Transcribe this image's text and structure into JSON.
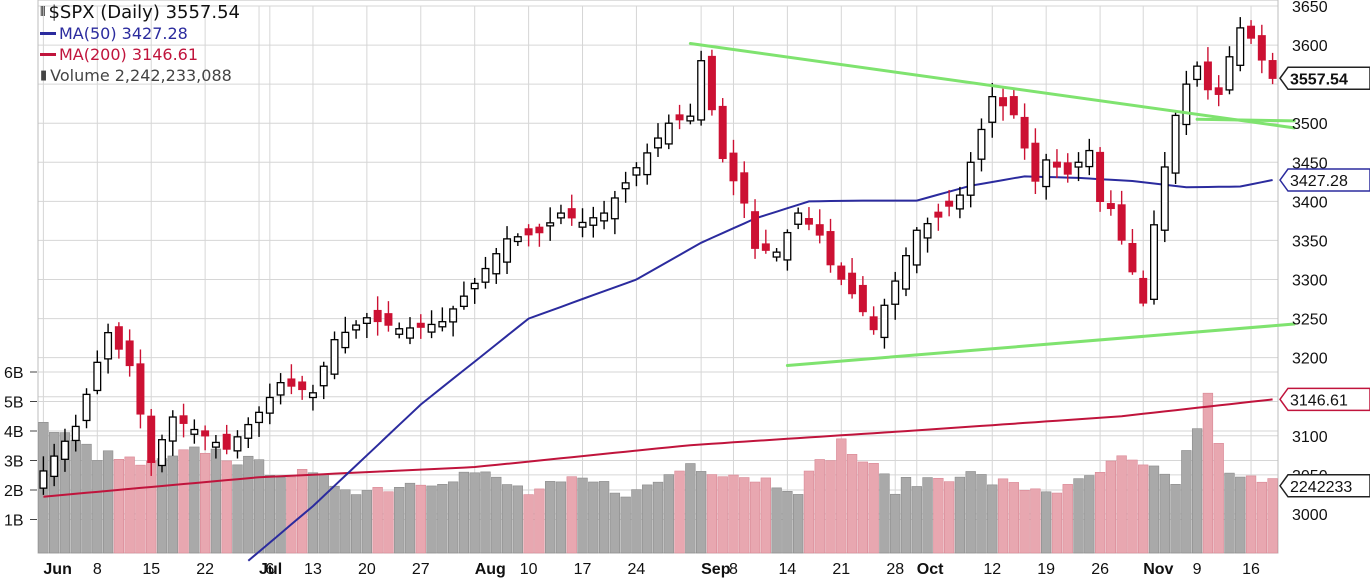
{
  "legend": {
    "title": "$SPX (Daily) 3557.54",
    "ma50": "MA(50) 3427.28",
    "ma200": "MA(200) 3146.61",
    "volume": "Volume 2,242,233,088"
  },
  "colors": {
    "up": "#000000",
    "down": "#cc1133",
    "ma50": "#2b2b9e",
    "ma200": "#c0143c",
    "trend": "#7fe36f",
    "vol_up": "#a9a9a9",
    "vol_down": "#e8a7b0",
    "grid": "#d6d6d6"
  },
  "chart_data": {
    "type": "candlestick",
    "price_axis": {
      "min": 2950,
      "max": 3650,
      "ticks": [
        3000,
        3050,
        3100,
        3150,
        3200,
        3250,
        3300,
        3350,
        3400,
        3450,
        3500,
        3550,
        3600,
        3650
      ],
      "tick_labels": [
        "3000",
        "3050",
        "3100",
        "",
        "3200",
        "3250",
        "3300",
        "3350",
        "3400",
        "3450",
        "3500",
        "",
        "3600",
        "3650"
      ]
    },
    "volume_axis": {
      "ticks": [
        1,
        2,
        3,
        4,
        5,
        6
      ],
      "labels": [
        "1B",
        "2B",
        "3B",
        "4B",
        "5B",
        "6B"
      ]
    },
    "x_labels": [
      {
        "i": 0,
        "label": "Jun",
        "bold": true
      },
      {
        "i": 5,
        "label": "8",
        "bold": false
      },
      {
        "i": 10,
        "label": "15",
        "bold": false
      },
      {
        "i": 15,
        "label": "22",
        "bold": false
      },
      {
        "i": 20,
        "label": "Jul",
        "bold": true
      },
      {
        "i": 21,
        "label": "6",
        "bold": false
      },
      {
        "i": 25,
        "label": "13",
        "bold": false
      },
      {
        "i": 30,
        "label": "20",
        "bold": false
      },
      {
        "i": 35,
        "label": "27",
        "bold": false
      },
      {
        "i": 40,
        "label": "Aug",
        "bold": true
      },
      {
        "i": 45,
        "label": "10",
        "bold": false
      },
      {
        "i": 50,
        "label": "17",
        "bold": false
      },
      {
        "i": 55,
        "label": "24",
        "bold": false
      },
      {
        "i": 61,
        "label": "Sep",
        "bold": true
      },
      {
        "i": 64,
        "label": "8",
        "bold": false
      },
      {
        "i": 69,
        "label": "14",
        "bold": false
      },
      {
        "i": 74,
        "label": "21",
        "bold": false
      },
      {
        "i": 79,
        "label": "28",
        "bold": false
      },
      {
        "i": 81,
        "label": "Oct",
        "bold": true
      },
      {
        "i": 88,
        "label": "12",
        "bold": false
      },
      {
        "i": 93,
        "label": "19",
        "bold": false
      },
      {
        "i": 98,
        "label": "26",
        "bold": false
      },
      {
        "i": 102,
        "label": "Nov",
        "bold": true
      },
      {
        "i": 107,
        "label": "9",
        "bold": false
      },
      {
        "i": 112,
        "label": "16",
        "bold": false
      }
    ],
    "price_tags": [
      {
        "value": 3557.54,
        "label": "3557.54",
        "kind": "last"
      },
      {
        "value": 3427.28,
        "label": "3427.28",
        "kind": "ma50"
      },
      {
        "value": 3146.61,
        "label": "3146.61",
        "kind": "ma200"
      },
      {
        "value": 3036,
        "label": "2242233",
        "kind": "volume"
      }
    ],
    "anchors": {
      "closes": [
        [
          0,
          3055
        ],
        [
          3,
          3112
        ],
        [
          5,
          3194
        ],
        [
          6,
          3232
        ],
        [
          8,
          3190
        ],
        [
          10,
          3066
        ],
        [
          12,
          3124
        ],
        [
          15,
          3100
        ],
        [
          17,
          3083
        ],
        [
          20,
          3130
        ],
        [
          22,
          3168
        ],
        [
          25,
          3155
        ],
        [
          27,
          3223
        ],
        [
          30,
          3251
        ],
        [
          33,
          3237
        ],
        [
          35,
          3239
        ],
        [
          37,
          3246
        ],
        [
          40,
          3295
        ],
        [
          43,
          3352
        ],
        [
          46,
          3360
        ],
        [
          48,
          3385
        ],
        [
          50,
          3373
        ],
        [
          52,
          3385
        ],
        [
          55,
          3443
        ],
        [
          58,
          3500
        ],
        [
          60,
          3509
        ],
        [
          61,
          3580
        ],
        [
          63,
          3455
        ],
        [
          65,
          3398
        ],
        [
          66,
          3340
        ],
        [
          68,
          3335
        ],
        [
          70,
          3385
        ],
        [
          72,
          3357
        ],
        [
          73,
          3319
        ],
        [
          75,
          3282
        ],
        [
          77,
          3236
        ],
        [
          79,
          3298
        ],
        [
          81,
          3363
        ],
        [
          83,
          3380
        ],
        [
          85,
          3408
        ],
        [
          88,
          3534
        ],
        [
          90,
          3511
        ],
        [
          92,
          3426
        ],
        [
          93,
          3453
        ],
        [
          95,
          3435
        ],
        [
          97,
          3465
        ],
        [
          98,
          3400
        ],
        [
          99,
          3391
        ],
        [
          101,
          3310
        ],
        [
          102,
          3270
        ],
        [
          103,
          3370
        ],
        [
          104,
          3444
        ],
        [
          105,
          3510
        ],
        [
          106,
          3550
        ],
        [
          107,
          3573
        ],
        [
          108,
          3543
        ],
        [
          109,
          3537
        ],
        [
          110,
          3585
        ],
        [
          111,
          3622
        ],
        [
          112,
          3609
        ],
        [
          113,
          3581
        ],
        [
          114,
          3557.54
        ]
      ],
      "ma50": [
        [
          19,
          2940
        ],
        [
          25,
          3010
        ],
        [
          35,
          3140
        ],
        [
          45,
          3250
        ],
        [
          55,
          3300
        ],
        [
          61,
          3347
        ],
        [
          66,
          3378
        ],
        [
          71,
          3400
        ],
        [
          76,
          3401
        ],
        [
          81,
          3401
        ],
        [
          86,
          3420
        ],
        [
          91,
          3432
        ],
        [
          96,
          3430
        ],
        [
          101,
          3426
        ],
        [
          106,
          3418
        ],
        [
          111,
          3419
        ],
        [
          114,
          3427.28
        ]
      ],
      "ma200": [
        [
          0,
          3022
        ],
        [
          20,
          3047
        ],
        [
          40,
          3060
        ],
        [
          60,
          3088
        ],
        [
          80,
          3106
        ],
        [
          100,
          3125
        ],
        [
          114,
          3146.61
        ]
      ],
      "volume": [
        [
          0,
          4.2
        ],
        [
          5,
          3.2
        ],
        [
          10,
          2.8
        ],
        [
          15,
          3.4
        ],
        [
          20,
          2.8
        ],
        [
          25,
          2.4
        ],
        [
          30,
          2.0
        ],
        [
          35,
          2.3
        ],
        [
          40,
          2.6
        ],
        [
          45,
          1.9
        ],
        [
          50,
          2.3
        ],
        [
          55,
          1.9
        ],
        [
          60,
          2.9
        ],
        [
          65,
          2.5
        ],
        [
          70,
          2.1
        ],
        [
          74,
          3.6
        ],
        [
          79,
          2.1
        ],
        [
          85,
          2.6
        ],
        [
          90,
          2.1
        ],
        [
          95,
          2.0
        ],
        [
          100,
          3.0
        ],
        [
          105,
          2.3
        ],
        [
          108,
          5.1
        ],
        [
          110,
          2.4
        ],
        [
          114,
          2.24
        ]
      ]
    },
    "trendlines": [
      {
        "from": [
          60,
          3602
        ],
        "to": [
          116,
          3494
        ]
      },
      {
        "from": [
          69,
          3190
        ],
        "to": [
          116,
          3243
        ]
      },
      {
        "from": [
          107,
          3505
        ],
        "to": [
          116,
          3503
        ]
      }
    ],
    "num_bars": 115
  }
}
